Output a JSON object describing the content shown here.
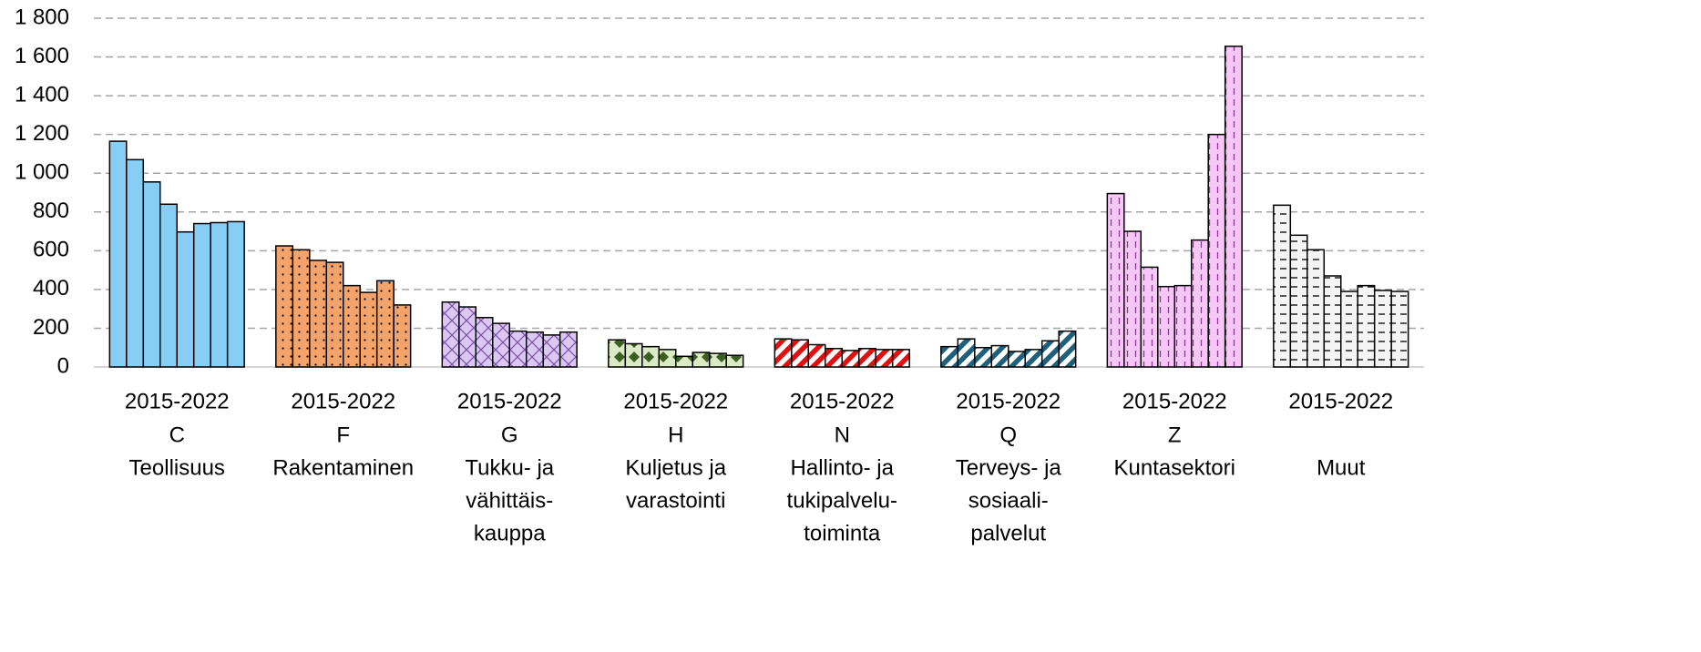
{
  "chart_data": {
    "type": "bar",
    "ylim": [
      0,
      1800
    ],
    "yticks": [
      0,
      200,
      400,
      600,
      800,
      {
        "value": 1000,
        "label": "1 000"
      },
      {
        "value": 1200,
        "label": "1 200"
      },
      {
        "value": 1400,
        "label": "1 400"
      },
      {
        "value": 1600,
        "label": "1 600"
      },
      {
        "value": 1800,
        "label": "1 800"
      }
    ],
    "grid": true,
    "groups": [
      {
        "period": "2015-2022",
        "code": "C",
        "name": [
          "Teollisuus"
        ],
        "color": "#87cef5",
        "pattern": "solid",
        "pattern_color": "#87cef5",
        "values": [
          1165,
          1070,
          955,
          840,
          697,
          740,
          745,
          750
        ]
      },
      {
        "period": "2015-2022",
        "code": "F",
        "name": [
          "Rakentaminen"
        ],
        "color": "#f4a46a",
        "pattern": "dots",
        "pattern_color": "#000000",
        "values": [
          625,
          605,
          550,
          540,
          420,
          385,
          445,
          320
        ]
      },
      {
        "period": "2015-2022",
        "code": "G",
        "name": [
          "Tukku- ja",
          "vähittäis-",
          "kauppa"
        ],
        "color": "#dcc8f2",
        "pattern": "crosshatch",
        "pattern_color": "#7a55a8",
        "values": [
          335,
          310,
          255,
          225,
          185,
          180,
          165,
          180
        ]
      },
      {
        "period": "2015-2022",
        "code": "H",
        "name": [
          "Kuljetus ja",
          "varastointi"
        ],
        "color": "#dbe9c4",
        "pattern": "diamonds",
        "pattern_color": "#3d5e22",
        "values": [
          140,
          120,
          105,
          90,
          55,
          75,
          70,
          60
        ]
      },
      {
        "period": "2015-2022",
        "code": "N",
        "name": [
          "Hallinto- ja",
          "tukipalvelu-",
          "toiminta"
        ],
        "color": "#ffffff",
        "pattern": "stripes",
        "pattern_color": "#e01010",
        "values": [
          145,
          140,
          115,
          95,
          85,
          95,
          90,
          90
        ]
      },
      {
        "period": "2015-2022",
        "code": "Q",
        "name": [
          "Terveys- ja",
          "sosiaali-",
          "palvelut"
        ],
        "color": "#ffffff",
        "pattern": "stripes",
        "pattern_color": "#1e5f7c",
        "values": [
          105,
          145,
          100,
          110,
          80,
          90,
          135,
          185
        ]
      },
      {
        "period": "2015-2022",
        "code": "Z",
        "name": [
          "Kuntasektori"
        ],
        "color": "#f7c8f7",
        "pattern": "vdash",
        "pattern_color": "#8a3a9a",
        "values": [
          895,
          700,
          515,
          415,
          420,
          655,
          1200,
          1655
        ]
      },
      {
        "period": "2015-2022",
        "name": [
          "Muut"
        ],
        "color": "#f4f4f4",
        "pattern": "hdash",
        "pattern_color": "#000000",
        "values": [
          835,
          680,
          605,
          470,
          390,
          420,
          395,
          390
        ]
      }
    ]
  }
}
